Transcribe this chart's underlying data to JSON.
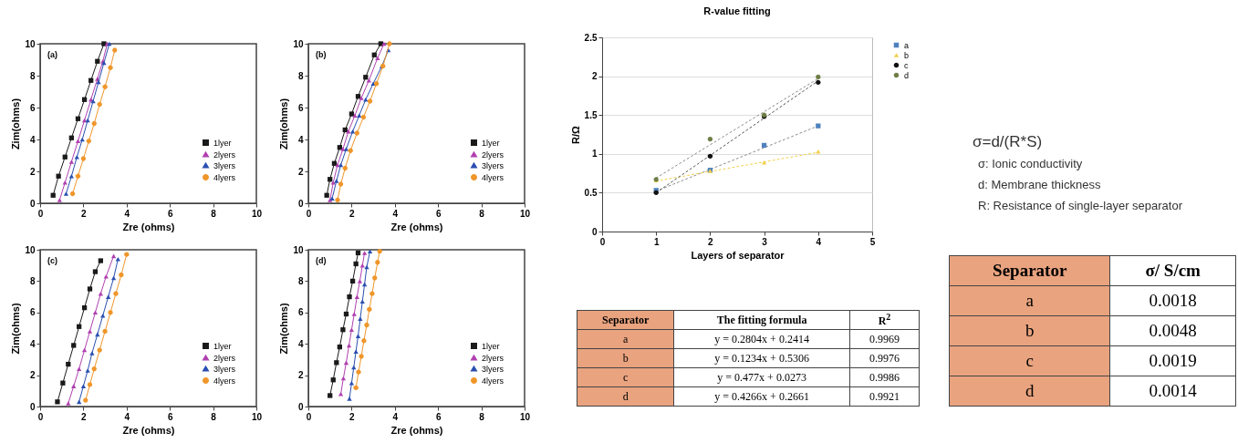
{
  "chart_data": [
    {
      "type": "line",
      "xlabel": "Zre (ohms)",
      "ylabel": "Zim(ohms)",
      "annotations": [
        "(a)"
      ],
      "xlim": [
        0,
        10
      ],
      "ylim": [
        0,
        10
      ],
      "xticks": [
        0,
        2,
        4,
        6,
        8,
        10
      ],
      "yticks": [
        0,
        2,
        4,
        6,
        8,
        10
      ],
      "legend": "bottom right",
      "series": [
        {
          "name": "1lyer",
          "color": "#1a1a1a",
          "marker": "square",
          "x": [
            0.6,
            0.85,
            1.15,
            1.45,
            1.75,
            2.05,
            2.35,
            2.65,
            2.95
          ],
          "values": [
            0.5,
            1.7,
            2.9,
            4.1,
            5.3,
            6.5,
            7.7,
            8.9,
            10
          ]
        },
        {
          "name": "2lyers",
          "color": "#b040b0",
          "marker": "triangle",
          "x": [
            0.9,
            1.15,
            1.45,
            1.75,
            2.05,
            2.35,
            2.65,
            2.9,
            3.1
          ],
          "values": [
            0.2,
            1.3,
            2.6,
            3.9,
            5.2,
            6.5,
            7.8,
            8.9,
            10
          ]
        },
        {
          "name": "3lyers",
          "color": "#2a4fb0",
          "marker": "triangle",
          "x": [
            1.2,
            1.45,
            1.7,
            1.95,
            2.2,
            2.45,
            2.7,
            2.95,
            3.2
          ],
          "values": [
            0.6,
            1.7,
            2.9,
            4.0,
            5.2,
            6.4,
            7.6,
            8.8,
            10
          ]
        },
        {
          "name": "4lyers",
          "color": "#f0962a",
          "marker": "circle",
          "x": [
            1.5,
            1.75,
            2.0,
            2.25,
            2.5,
            2.75,
            3.0,
            3.25,
            3.45
          ],
          "values": [
            0.6,
            1.7,
            2.8,
            3.9,
            5.0,
            6.2,
            7.3,
            8.5,
            9.6
          ]
        }
      ]
    },
    {
      "type": "line",
      "xlabel": "Zre (ohms)",
      "ylabel": "Zim(ohms)",
      "annotations": [
        "(b)"
      ],
      "xlim": [
        0,
        10
      ],
      "ylim": [
        0,
        10
      ],
      "xticks": [
        0,
        2,
        4,
        6,
        8,
        10
      ],
      "yticks": [
        0,
        2,
        4,
        6,
        8,
        10
      ],
      "legend": "bottom right",
      "series": [
        {
          "name": "1lyer",
          "color": "#1a1a1a",
          "marker": "square",
          "x": [
            0.85,
            1.0,
            1.2,
            1.45,
            1.7,
            2.0,
            2.3,
            2.65,
            3.05,
            3.35
          ],
          "values": [
            0.5,
            1.5,
            2.5,
            3.5,
            4.6,
            5.6,
            6.7,
            7.9,
            9.3,
            10
          ]
        },
        {
          "name": "2lyers",
          "color": "#b040b0",
          "marker": "triangle",
          "x": [
            1.0,
            1.15,
            1.35,
            1.6,
            1.85,
            2.15,
            2.45,
            2.8,
            3.2,
            3.5
          ],
          "values": [
            0.2,
            1.3,
            2.4,
            3.4,
            4.5,
            5.5,
            6.6,
            7.7,
            9.1,
            10
          ]
        },
        {
          "name": "3lyers",
          "color": "#2a4fb0",
          "marker": "triangle",
          "x": [
            1.1,
            1.3,
            1.5,
            1.75,
            2.05,
            2.35,
            2.65,
            3.0,
            3.4,
            3.7
          ],
          "values": [
            0.3,
            1.4,
            2.4,
            3.4,
            4.5,
            5.5,
            6.5,
            7.5,
            8.6,
            9.6
          ]
        },
        {
          "name": "4lyers",
          "color": "#f0962a",
          "marker": "circle",
          "x": [
            1.35,
            1.5,
            1.7,
            1.95,
            2.25,
            2.55,
            2.85,
            3.15,
            3.45,
            3.75
          ],
          "values": [
            0.2,
            1.2,
            2.2,
            3.3,
            4.4,
            5.4,
            6.4,
            7.5,
            8.6,
            10
          ]
        }
      ]
    },
    {
      "type": "line",
      "xlabel": "Zre (ohms)",
      "ylabel": "Zim(ohms)",
      "annotations": [
        "(c)"
      ],
      "xlim": [
        0,
        10
      ],
      "ylim": [
        0,
        10
      ],
      "xticks": [
        0,
        2,
        4,
        6,
        8,
        10
      ],
      "yticks": [
        0,
        2,
        4,
        6,
        8,
        10
      ],
      "legend": "bottom right",
      "series": [
        {
          "name": "1lyer",
          "color": "#1a1a1a",
          "marker": "square",
          "x": [
            0.8,
            1.05,
            1.3,
            1.55,
            1.8,
            2.05,
            2.3,
            2.55,
            2.8
          ],
          "values": [
            0.3,
            1.5,
            2.7,
            3.9,
            5.1,
            6.3,
            7.5,
            8.6,
            9.3
          ]
        },
        {
          "name": "2lyers",
          "color": "#b040b0",
          "marker": "triangle",
          "x": [
            1.3,
            1.55,
            1.8,
            2.05,
            2.3,
            2.55,
            2.8,
            3.05,
            3.4
          ],
          "values": [
            0.2,
            1.3,
            2.4,
            3.6,
            4.8,
            6.0,
            7.2,
            8.3,
            9.6
          ]
        },
        {
          "name": "3lyers",
          "color": "#2a4fb0",
          "marker": "triangle",
          "x": [
            1.8,
            2.0,
            2.2,
            2.4,
            2.65,
            2.9,
            3.15,
            3.4,
            3.6
          ],
          "values": [
            0.3,
            1.3,
            2.3,
            3.4,
            4.6,
            5.8,
            7.0,
            8.2,
            9.4
          ]
        },
        {
          "name": "4lyers",
          "color": "#f0962a",
          "marker": "circle",
          "x": [
            2.1,
            2.3,
            2.5,
            2.75,
            3.0,
            3.25,
            3.5,
            3.75,
            4.0
          ],
          "values": [
            0.4,
            1.4,
            2.4,
            3.6,
            4.8,
            6.0,
            7.2,
            8.4,
            9.7
          ]
        }
      ]
    },
    {
      "type": "line",
      "xlabel": "Zre (ohms)",
      "ylabel": "Zim(ohms)",
      "annotations": [
        "(d)"
      ],
      "xlim": [
        0,
        10
      ],
      "ylim": [
        0,
        10
      ],
      "xticks": [
        0,
        2,
        4,
        6,
        8,
        10
      ],
      "yticks": [
        0,
        2,
        4,
        6,
        8,
        10
      ],
      "legend": "bottom right",
      "series": [
        {
          "name": "1lyer",
          "color": "#1a1a1a",
          "marker": "square",
          "x": [
            1.0,
            1.15,
            1.3,
            1.45,
            1.6,
            1.75,
            1.9,
            2.05,
            2.2,
            2.3
          ],
          "values": [
            0.7,
            1.7,
            2.8,
            3.8,
            4.9,
            5.9,
            7.0,
            8.0,
            9.1,
            9.8
          ]
        },
        {
          "name": "2lyers",
          "color": "#b040b0",
          "marker": "triangle",
          "x": [
            1.5,
            1.62,
            1.75,
            1.88,
            2.0,
            2.12,
            2.25,
            2.38,
            2.5,
            2.6
          ],
          "values": [
            0.8,
            1.8,
            2.8,
            3.9,
            4.9,
            5.9,
            7.0,
            8.0,
            9.0,
            9.8
          ]
        },
        {
          "name": "3lyers",
          "color": "#2a4fb0",
          "marker": "triangle",
          "x": [
            1.9,
            2.0,
            2.1,
            2.2,
            2.3,
            2.4,
            2.5,
            2.6,
            2.7,
            2.85
          ],
          "values": [
            0.5,
            1.5,
            2.5,
            3.5,
            4.5,
            5.6,
            6.7,
            7.8,
            8.9,
            9.9
          ]
        },
        {
          "name": "4lyers",
          "color": "#f0962a",
          "marker": "circle",
          "x": [
            2.2,
            2.32,
            2.45,
            2.57,
            2.7,
            2.82,
            2.95,
            3.07,
            3.2,
            3.3
          ],
          "values": [
            1.2,
            2.2,
            3.2,
            4.2,
            5.2,
            6.2,
            7.2,
            8.2,
            9.2,
            9.9
          ]
        }
      ]
    },
    {
      "type": "scatter",
      "title": "R-value fitting",
      "xlabel": "Layers of separator",
      "ylabel": "R/Ω",
      "x": [
        1,
        2,
        3,
        4
      ],
      "xlim": [
        0,
        5
      ],
      "ylim": [
        0,
        2.5
      ],
      "xticks": [
        0,
        1,
        2,
        3,
        4,
        5
      ],
      "yticks": [
        0,
        0.5,
        1,
        1.5,
        2,
        2.5
      ],
      "grid": "y",
      "legend": "right",
      "series": [
        {
          "color": "#8c8c8c",
          "type": "line",
          "marker": "none",
          "line_style": "dotted",
          "x": [
            1,
            4
          ],
          "values": [
            0.52,
            1.36
          ]
        },
        {
          "color": "#f2d04b",
          "type": "line",
          "marker": "none",
          "line_style": "dotted",
          "x": [
            1,
            4
          ],
          "values": [
            0.65,
            1.02
          ]
        },
        {
          "color": "#555555",
          "type": "line",
          "marker": "none",
          "line_style": "dotted",
          "x": [
            1,
            4
          ],
          "values": [
            0.5,
            1.94
          ]
        },
        {
          "color": "#8c8c8c",
          "type": "line",
          "marker": "none",
          "line_style": "dotted",
          "x": [
            1,
            4
          ],
          "values": [
            0.69,
            1.97
          ]
        },
        {
          "name": "a",
          "color": "#4f81bd",
          "marker": "square",
          "values": [
            0.53,
            0.79,
            1.11,
            1.36
          ]
        },
        {
          "name": "b",
          "color": "#f2d04b",
          "marker": "triangle",
          "values": [
            0.66,
            0.78,
            0.89,
            1.03
          ]
        },
        {
          "name": "c",
          "color": "#111111",
          "marker": "circle",
          "values": [
            0.5,
            0.97,
            1.48,
            1.92
          ]
        },
        {
          "name": "d",
          "color": "#6e7f45",
          "marker": "circle",
          "values": [
            0.67,
            1.19,
            1.5,
            1.99
          ]
        }
      ]
    },
    {
      "type": "other",
      "categories": [
        "Separator",
        "The fitting formula",
        "R$^{2}$"
      ],
      "cell_labels": [
        [
          "a",
          "y = 0.2804x + 0.2414",
          "0.9969"
        ],
        [
          "b",
          "y = 0.1234x + 0.5306",
          "0.9976"
        ],
        [
          "c",
          "y = 0.477x + 0.0273",
          "0.9986"
        ],
        [
          "d",
          "y = 0.4266x + 0.2661",
          "0.9921"
        ]
      ]
    },
    {
      "type": "other",
      "annotations": [
        "σ=d/(R*S)",
        "σ: Ionic conductivity",
        "d: Membrane thickness",
        "R: Resistance of single-layer separator"
      ]
    },
    {
      "type": "other",
      "categories": [
        "Separator",
        "σ/ S/cm"
      ],
      "cell_labels": [
        [
          "a",
          "0.0018"
        ],
        [
          "b",
          "0.0048"
        ],
        [
          "c",
          "0.0019"
        ],
        [
          "d",
          "0.0014"
        ]
      ]
    }
  ]
}
